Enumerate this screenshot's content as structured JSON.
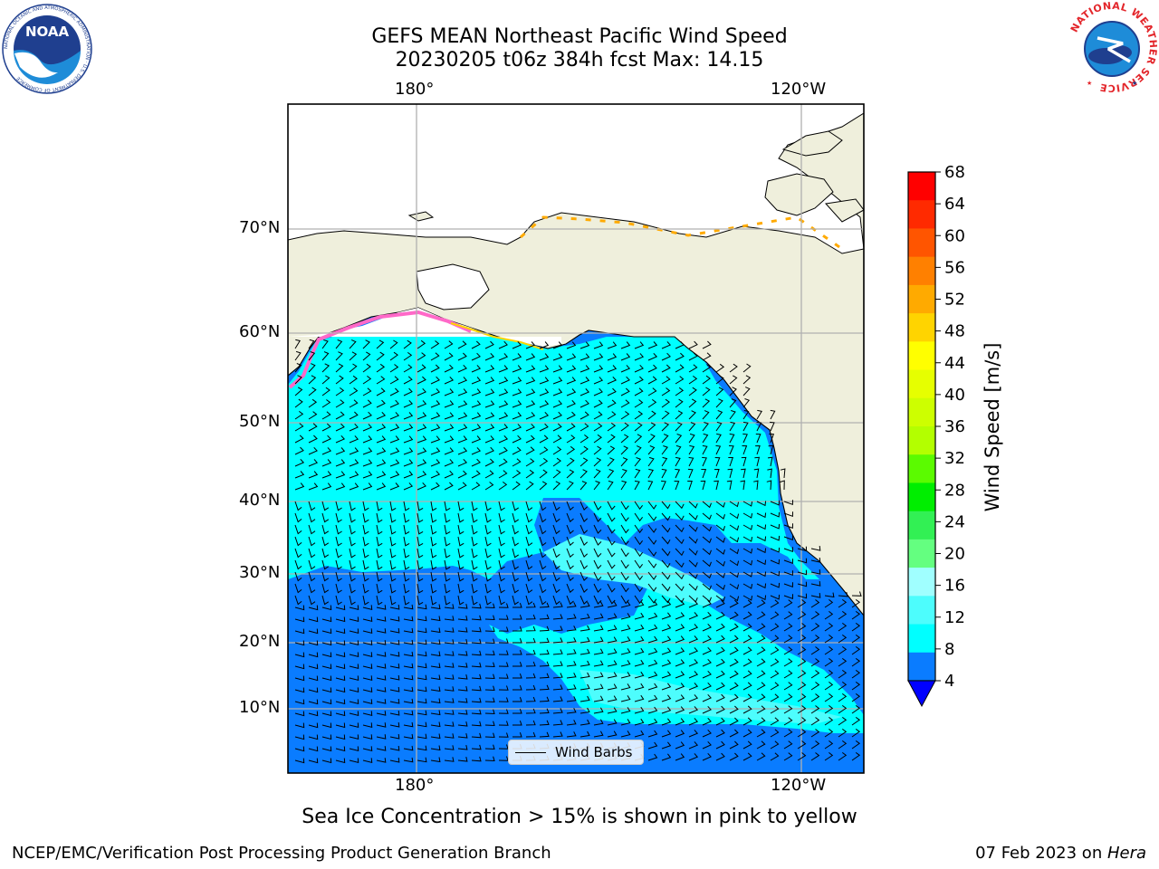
{
  "title": {
    "line1": "GEFS MEAN Northeast Pacific Wind Speed",
    "line2": "20230205 t06z 384h fcst   Max: 14.15"
  },
  "map": {
    "top_lon_labels": [
      "180°",
      "120°W"
    ],
    "bottom_lon_labels": [
      "180°",
      "120°W"
    ],
    "lat_labels": [
      "70°N",
      "60°N",
      "50°N",
      "40°N",
      "30°N",
      "20°N",
      "10°N"
    ],
    "legend_label": "Wind Barbs",
    "colors": {
      "land": "#efefdc",
      "speed_4_8": "#0a7cff",
      "speed_8_12": "#00ffff",
      "speed_12_16": "#4dfdfd",
      "grid": "#b0b0b0",
      "ice_pink": "#ff69c8",
      "ice_yellow": "#ffd400"
    }
  },
  "colorbar": {
    "label": "Wind Speed [m/s]",
    "ticks": [
      "68",
      "64",
      "60",
      "56",
      "52",
      "48",
      "44",
      "40",
      "36",
      "32",
      "28",
      "24",
      "20",
      "16",
      "12",
      "8",
      "4"
    ],
    "colors_top_to_bottom": [
      "#ff0000",
      "#ff2a00",
      "#ff5500",
      "#ff8000",
      "#ffaa00",
      "#ffd400",
      "#ffff00",
      "#e6ff00",
      "#cdff00",
      "#b3ff00",
      "#5bfb00",
      "#00ee00",
      "#32f054",
      "#64ff80",
      "#a0ffff",
      "#4dfdfd",
      "#00ffff",
      "#0a7cff"
    ],
    "extend_color": "#0000ff"
  },
  "caption": "Sea Ice Concentration > 15% is shown in pink to yellow",
  "footer": {
    "left": "NCEP/EMC/Verification Post Processing Product Generation Branch",
    "date": "07 Feb 2023 on ",
    "machine": "Hera"
  },
  "logos": {
    "left": "NOAA",
    "left_ring_text": "NATIONAL OCEANIC AND ATMOSPHERIC ADMINISTRATION · U.S. DEPARTMENT OF COMMERCE",
    "right_ring_text": "NATIONAL WEATHER SERVICE"
  }
}
